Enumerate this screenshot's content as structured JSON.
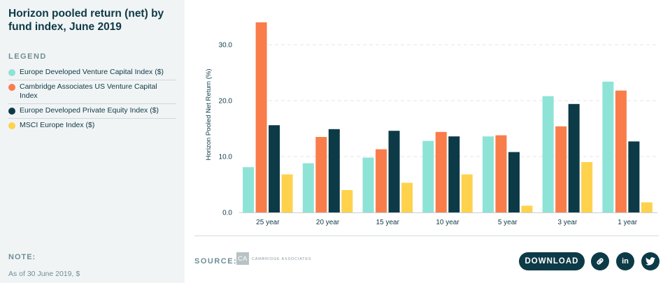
{
  "sidebar": {
    "title": "Horizon pooled return (net) by fund index, June 2019",
    "legend_heading": "LEGEND",
    "note_heading": "NOTE:",
    "note_text": "As of 30 June 2019, $"
  },
  "footer": {
    "source_label": "SOURCE:",
    "source_logo": "CA",
    "source_name": "CAMBRIDGE ASSOCIATES",
    "download_label": "DOWNLOAD",
    "share_icons": [
      "link-icon",
      "linkedin-icon",
      "twitter-icon"
    ]
  },
  "chart_data": {
    "type": "bar",
    "title": "Horizon pooled return (net) by fund index, June 2019",
    "xlabel": "",
    "ylabel": "Horizon Pooled Net Return (%)",
    "ylim": [
      0,
      35
    ],
    "yticks": [
      0,
      10,
      20,
      30
    ],
    "ytick_labels": [
      "0.0",
      "10.0",
      "20.0",
      "30.0"
    ],
    "grid": true,
    "legend_position": "left-sidebar",
    "categories": [
      "25 year",
      "20 year",
      "15 year",
      "10 year",
      "5 year",
      "3 year",
      "1 year"
    ],
    "series": [
      {
        "name": "Europe Developed Venture Capital Index ($)",
        "color": "#8ee3d7",
        "values": [
          8.1,
          8.8,
          9.8,
          12.8,
          13.6,
          20.8,
          23.4
        ]
      },
      {
        "name": "Cambridge Associates US Venture Capital Index",
        "color": "#f97d4a",
        "values": [
          34.0,
          13.5,
          11.3,
          14.4,
          13.8,
          15.4,
          21.8
        ]
      },
      {
        "name": "Europe Developed Private Equity Index ($)",
        "color": "#0d3a47",
        "values": [
          15.6,
          14.9,
          14.6,
          13.6,
          10.8,
          19.4,
          12.7
        ]
      },
      {
        "name": "MSCI Europe Index ($)",
        "color": "#ffd24d",
        "values": [
          6.8,
          4.0,
          5.3,
          6.8,
          1.2,
          9.0,
          1.8
        ]
      }
    ]
  }
}
